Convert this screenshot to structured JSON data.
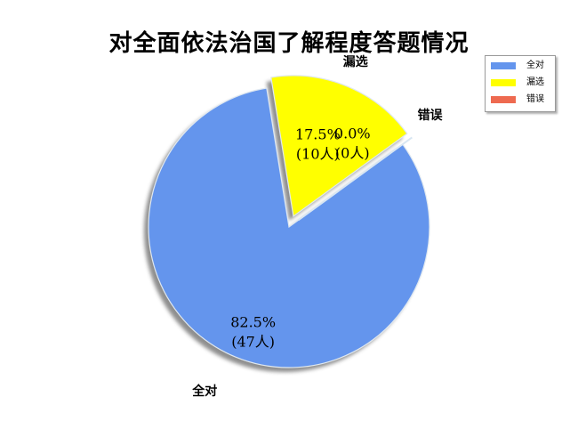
{
  "chart_data": {
    "type": "pie",
    "title": "对全面依法治国了解程度答题情况",
    "legend_placement": "top-right",
    "slices": [
      {
        "label": "全对",
        "value": 47,
        "percent_text": "82.5%",
        "count_text": "(47人)",
        "color": "#6495ED",
        "exploded": false
      },
      {
        "label": "漏选",
        "value": 10,
        "percent_text": "17.5%",
        "count_text": "(10人)",
        "color": "#FFFF00",
        "exploded": true
      },
      {
        "label": "错误",
        "value": 0,
        "percent_text": "0.0%",
        "count_text": "(0人)",
        "color": "#EE6A50",
        "exploded": true
      }
    ]
  }
}
